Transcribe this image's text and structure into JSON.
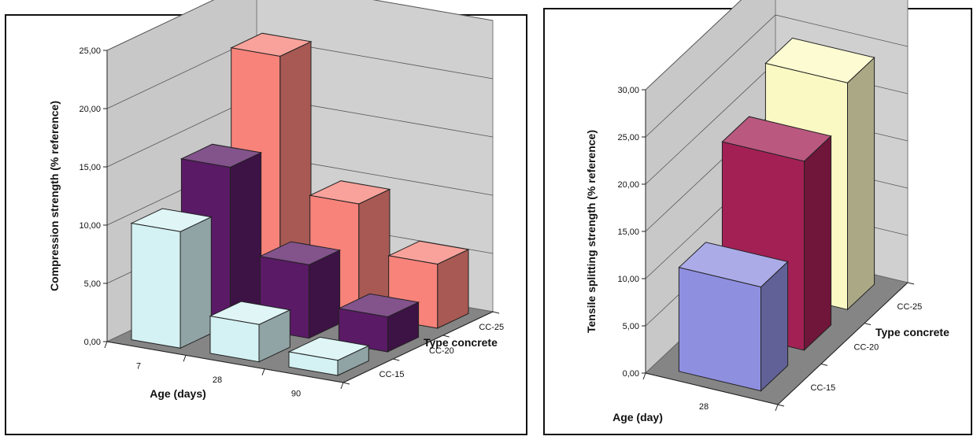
{
  "chart_data": [
    {
      "type": "bar",
      "ylabel": "Compression strength (% reference)",
      "xlabel": "Age (days)",
      "zlabel": "Type concrete",
      "categories": [
        "7",
        "28",
        "90"
      ],
      "yticks": [
        "0,00",
        "5,00",
        "10,00",
        "15,00",
        "20,00",
        "25,00"
      ],
      "ylim": [
        0,
        25
      ],
      "series": [
        {
          "name": "CC-15",
          "color": "#d4f1f3",
          "values": [
            10.0,
            3.2,
            1.3
          ]
        },
        {
          "name": "CC-20",
          "color": "#5a1a66",
          "values": [
            13.5,
            6.3,
            3.0
          ]
        },
        {
          "name": "CC-25",
          "color": "#f7837a",
          "values": [
            21.0,
            9.5,
            5.5
          ]
        }
      ]
    },
    {
      "type": "bar",
      "ylabel": "Tensile splitting strength (% reference)",
      "xlabel": "Age (day)",
      "zlabel": "Type concrete",
      "categories": [
        "28"
      ],
      "yticks": [
        "0,00",
        "5,00",
        "10,00",
        "15,00",
        "20,00",
        "25,00",
        "30,00"
      ],
      "ylim": [
        0,
        30
      ],
      "series": [
        {
          "name": "CC-15",
          "color": "#8f8fe0",
          "values": [
            11.0
          ]
        },
        {
          "name": "CC-20",
          "color": "#a32055",
          "values": [
            20.0
          ]
        },
        {
          "name": "CC-25",
          "color": "#fbf9c3",
          "values": [
            24.0
          ]
        }
      ]
    }
  ]
}
